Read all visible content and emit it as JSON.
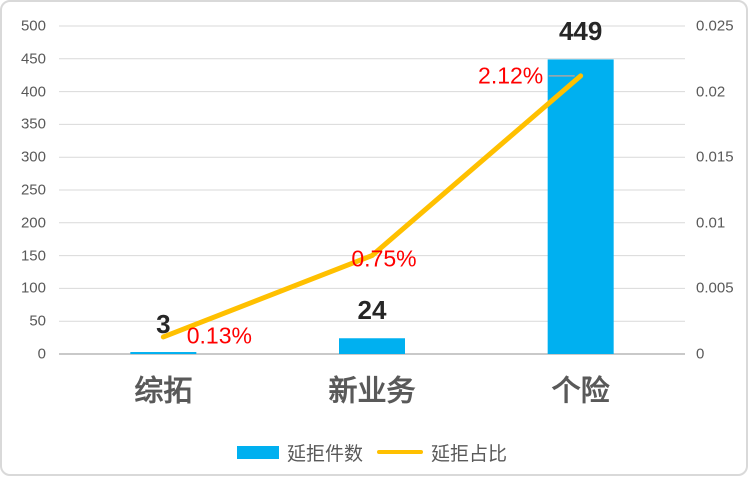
{
  "chart_data": {
    "type": "combo",
    "categories": [
      "综拓",
      "新业务",
      "个险"
    ],
    "series": [
      {
        "name": "延拒件数",
        "type": "bar",
        "axis": "left",
        "values": [
          3,
          24,
          449
        ],
        "data_labels": [
          "3",
          "24",
          "449"
        ],
        "color": "#00B0F0"
      },
      {
        "name": "延拒占比",
        "type": "line",
        "axis": "right",
        "values": [
          0.0013,
          0.0075,
          0.0212
        ],
        "data_labels": [
          "0.13%",
          "0.75%",
          "2.12%"
        ],
        "color": "#FFC000",
        "label_color": "#FF0000"
      }
    ],
    "left_axis": {
      "min": 0,
      "max": 500,
      "step": 50,
      "ticks": [
        "0",
        "50",
        "100",
        "150",
        "200",
        "250",
        "300",
        "350",
        "400",
        "450",
        "500"
      ]
    },
    "right_axis": {
      "min": 0,
      "max": 0.025,
      "step": 0.005,
      "ticks": [
        "0",
        "0.005",
        "0.01",
        "0.015",
        "0.02",
        "0.025"
      ]
    },
    "grid": true,
    "legend_position": "bottom"
  },
  "legend": [
    {
      "label": "延拒件数"
    },
    {
      "label": "延拒占比"
    }
  ],
  "colors": {
    "bar": "#00B0F0",
    "line": "#FFC000",
    "pct_label": "#FF0000",
    "value_label": "#262626",
    "axis_text": "#595959",
    "category_text": "#595959",
    "gridline": "#D9D9D9",
    "axis_line": "#C9C9C9",
    "leader_line": "#A6A6A6",
    "border": "#D9D9D9",
    "background": "#FFFFFF"
  }
}
